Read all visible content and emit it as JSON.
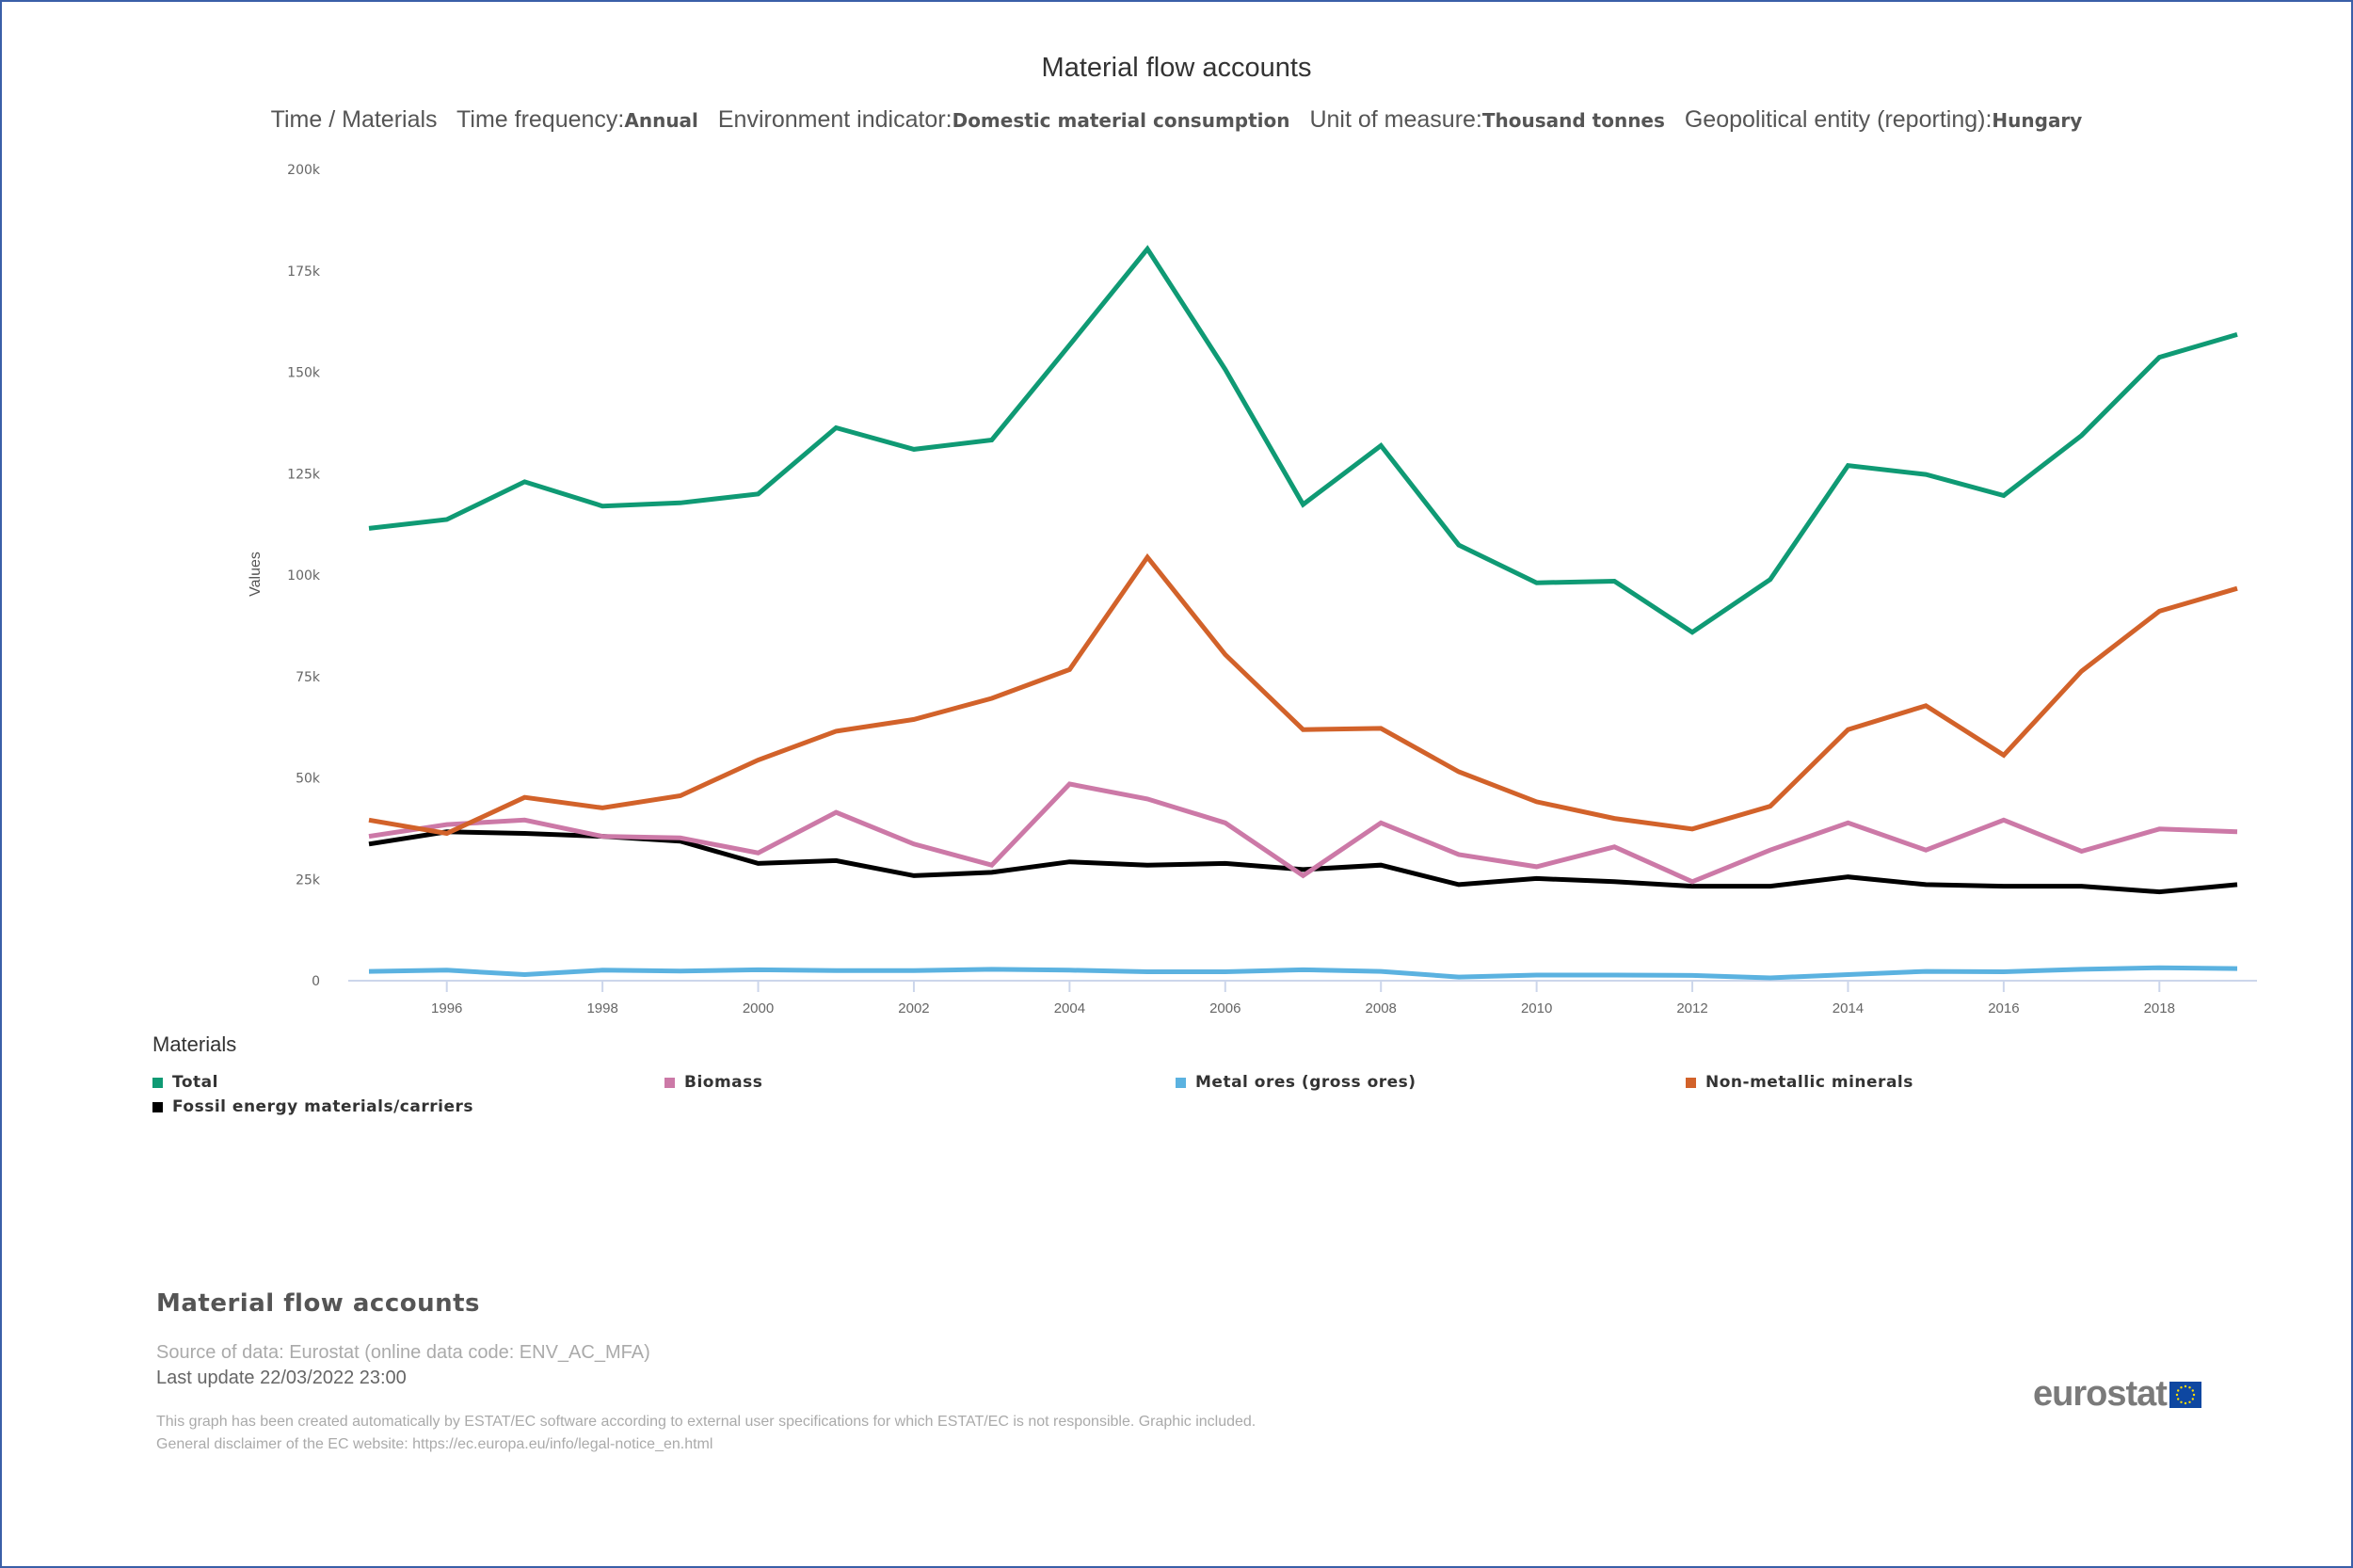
{
  "header": {
    "title": "Material flow accounts",
    "subtitle": [
      {
        "label": "Time / Materials",
        "value": ""
      },
      {
        "label": "Time frequency:",
        "value": "Annual"
      },
      {
        "label": "Environment indicator:",
        "value": "Domestic material consumption"
      },
      {
        "label": "Unit of measure:",
        "value": "Thousand tonnes"
      },
      {
        "label": "Geopolitical entity (reporting):",
        "value": "Hungary"
      }
    ]
  },
  "chart_data": {
    "type": "line",
    "title": "Material flow accounts",
    "xlabel": "",
    "ylabel": "Values",
    "ylim": [
      0,
      200000
    ],
    "yticks": [
      0,
      25000,
      50000,
      75000,
      100000,
      125000,
      150000,
      175000,
      200000
    ],
    "ytick_labels": [
      "0",
      "25k",
      "50k",
      "75k",
      "100k",
      "125k",
      "150k",
      "175k",
      "200k"
    ],
    "x": [
      1995,
      1996,
      1997,
      1998,
      1999,
      2000,
      2001,
      2002,
      2003,
      2004,
      2005,
      2006,
      2007,
      2008,
      2009,
      2010,
      2011,
      2012,
      2013,
      2014,
      2015,
      2016,
      2017,
      2018,
      2019
    ],
    "xticks": [
      1996,
      1998,
      2000,
      2002,
      2004,
      2006,
      2008,
      2010,
      2012,
      2014,
      2016,
      2018
    ],
    "xtick_labels": [
      "1996",
      "1998",
      "2000",
      "2002",
      "2004",
      "2006",
      "2008",
      "2010",
      "2012",
      "2014",
      "2016",
      "2018"
    ],
    "grid": false,
    "legend_title": "Materials",
    "legend_position": "bottom",
    "series": [
      {
        "name": "Total",
        "color": "#0f9a74",
        "values": [
          111500,
          113700,
          123000,
          117000,
          117800,
          120000,
          136300,
          131000,
          133300,
          156700,
          180400,
          150700,
          117400,
          131900,
          107400,
          98100,
          98500,
          85900,
          98900,
          127000,
          124800,
          119600,
          134400,
          153700,
          159300
        ]
      },
      {
        "name": "Biomass",
        "color": "#cc79a7",
        "values": [
          35600,
          38500,
          39600,
          35600,
          35200,
          31500,
          41500,
          33700,
          28500,
          48500,
          44800,
          38900,
          25900,
          38900,
          31100,
          28100,
          33000,
          24400,
          32200,
          38900,
          32200,
          39600,
          31900,
          37400,
          36700
        ]
      },
      {
        "name": "Metal ores (gross ores)",
        "color": "#5bb2e0",
        "values": [
          2300,
          2600,
          1500,
          2600,
          2400,
          2700,
          2500,
          2500,
          2800,
          2600,
          2200,
          2200,
          2700,
          2300,
          900,
          1400,
          1400,
          1300,
          700,
          1500,
          2300,
          2200,
          2800,
          3200,
          3000
        ]
      },
      {
        "name": "Non-metallic minerals",
        "color": "#d2622a",
        "values": [
          39600,
          36300,
          45200,
          42600,
          45600,
          54400,
          61500,
          64400,
          69600,
          76700,
          104400,
          80400,
          61900,
          62200,
          51500,
          44100,
          40000,
          37400,
          43000,
          61900,
          67800,
          55600,
          76300,
          91100,
          96700
        ]
      },
      {
        "name": "Fossil energy materials/carriers",
        "color": "#000000",
        "values": [
          33700,
          36700,
          36300,
          35600,
          34400,
          28900,
          29600,
          25900,
          26700,
          29300,
          28500,
          28900,
          27400,
          28500,
          23700,
          25200,
          24400,
          23300,
          23300,
          25600,
          23700,
          23300,
          23300,
          21900,
          23700
        ]
      }
    ]
  },
  "footer": {
    "title": "Material flow accounts",
    "source": "Source of data: Eurostat (online data code: ENV_AC_MFA)",
    "last_update": "Last update 22/03/2022 23:00",
    "disclaimer_1": "This graph has been created automatically by ESTAT/EC software according to external user specifications for which ESTAT/EC is not responsible. Graphic included.",
    "disclaimer_2": "General disclaimer of the EC website: https://ec.europa.eu/info/legal-notice_en.html",
    "logo_text": "eurostat"
  }
}
